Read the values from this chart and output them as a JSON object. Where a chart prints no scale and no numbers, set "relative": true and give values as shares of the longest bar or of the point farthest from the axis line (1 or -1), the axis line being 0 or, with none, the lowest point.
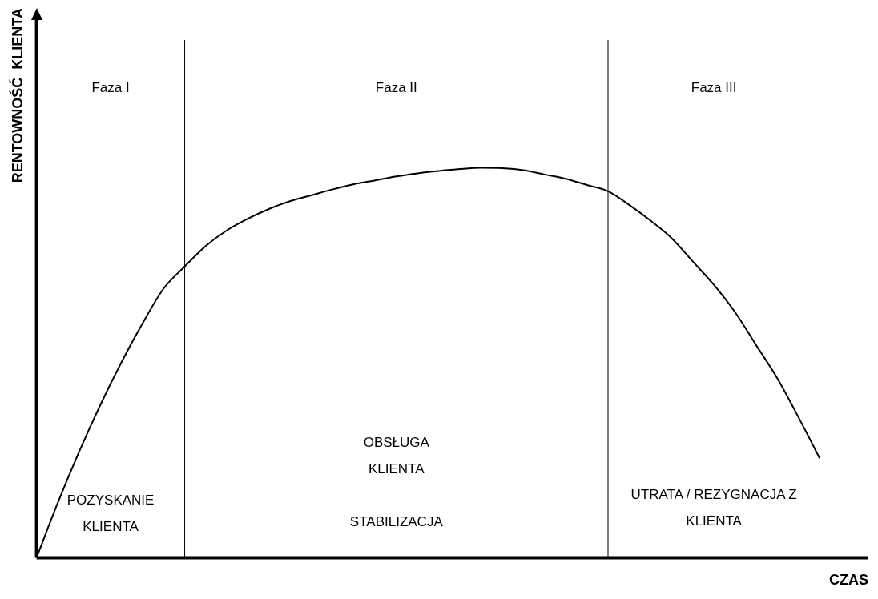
{
  "chart_data": {
    "type": "line",
    "relative": true,
    "xlabel": "CZAS",
    "ylabel": "RENTOWNOŚĆ  KLIENTA",
    "categories": [
      null,
      null,
      null,
      null,
      null,
      null,
      null,
      null,
      null,
      null,
      null,
      null,
      null,
      null,
      null,
      null,
      null,
      null,
      null,
      null,
      null,
      null,
      null,
      null,
      null,
      null,
      null,
      null,
      null,
      null,
      null,
      null,
      null,
      null,
      null,
      null,
      null,
      null
    ],
    "series": [
      {
        "color": "#000000",
        "values": [
          0,
          0.14,
          0.27,
          0.39,
          0.5,
          0.6,
          0.69,
          0.747,
          0.8,
          0.84,
          0.87,
          0.895,
          0.915,
          0.93,
          0.945,
          0.958,
          0.968,
          0.978,
          0.986,
          0.992,
          0.997,
          1,
          0.999,
          0.994,
          0.983,
          0.972,
          0.956,
          0.94,
          0.905,
          0.865,
          0.82,
          0.76,
          0.7,
          0.63,
          0.545,
          0.46,
          0.36,
          0.255
        ]
      }
    ],
    "annotations": [
      "Faza I",
      "Faza II",
      "Faza III",
      "POZYSKANIE KLIENTA",
      "OBSŁUGA KLIENTA",
      "STABILIZACJA",
      "UTRATA / REZYGNACJA Z KLIENTA"
    ],
    "grid": false,
    "legend": false,
    "marker": "none",
    "line_style": "solid"
  }
}
